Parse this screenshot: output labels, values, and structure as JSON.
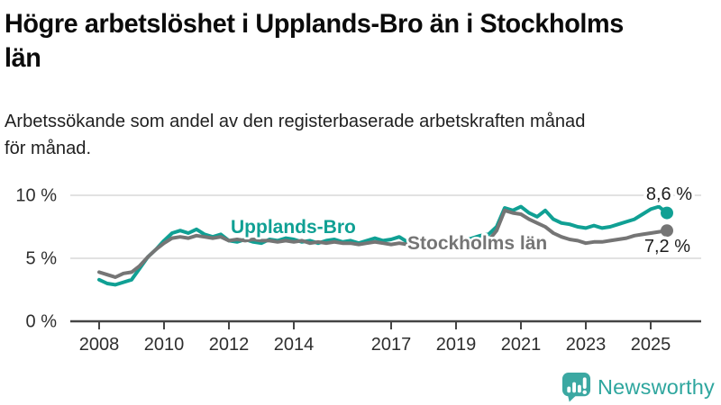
{
  "header": {
    "title_lines": [
      "Högre arbetslöshet i Upplands-Bro än i Stockholms",
      "län"
    ],
    "subtitle_lines": [
      "Arbetssökande som andel av den registerbaserade arbetskraften månad",
      "för månad."
    ]
  },
  "chart_data": {
    "type": "line",
    "title": "Högre arbetslöshet i Upplands-Bro än i Stockholms län",
    "subtitle": "Arbetssökande som andel av den registerbaserade arbetskraften månad för månad.",
    "ylabel": "",
    "xlabel": "",
    "ylim": [
      0,
      10.8
    ],
    "xlim": [
      2008,
      2026.3
    ],
    "grid": "horizontal",
    "legend_position": "inline-labels",
    "x_ticks": [
      2008,
      2010,
      2012,
      2014,
      2017,
      2019,
      2021,
      2023,
      2025
    ],
    "y_ticks": [
      {
        "value": 0,
        "label": "0 %"
      },
      {
        "value": 5,
        "label": "5 %"
      },
      {
        "value": 10,
        "label": "10 %"
      }
    ],
    "x": [
      2008.0,
      2008.25,
      2008.5,
      2008.75,
      2009.0,
      2009.25,
      2009.5,
      2009.75,
      2010.0,
      2010.25,
      2010.5,
      2010.75,
      2011.0,
      2011.25,
      2011.5,
      2011.75,
      2012.0,
      2012.25,
      2012.5,
      2012.75,
      2013.0,
      2013.25,
      2013.5,
      2013.75,
      2014.0,
      2014.25,
      2014.5,
      2014.75,
      2015.0,
      2015.25,
      2015.5,
      2015.75,
      2016.0,
      2016.25,
      2016.5,
      2016.75,
      2017.0,
      2017.25,
      2017.5,
      2017.75,
      2018.0,
      2018.25,
      2018.5,
      2018.75,
      2019.0,
      2019.25,
      2019.5,
      2019.75,
      2020.0,
      2020.25,
      2020.5,
      2020.75,
      2021.0,
      2021.25,
      2021.5,
      2021.75,
      2022.0,
      2022.25,
      2022.5,
      2022.75,
      2023.0,
      2023.25,
      2023.5,
      2023.75,
      2024.0,
      2024.25,
      2024.5,
      2024.75,
      2025.0,
      2025.25,
      2025.5
    ],
    "series": [
      {
        "name": "Upplands-Bro",
        "color": "#10a094",
        "end_label": "8,6 %",
        "end_value": 8.6,
        "values": [
          3.3,
          3.0,
          2.9,
          3.1,
          3.3,
          4.2,
          5.1,
          5.7,
          6.4,
          7.0,
          7.2,
          7.0,
          7.3,
          6.9,
          6.7,
          6.9,
          6.4,
          6.3,
          6.5,
          6.3,
          6.2,
          6.5,
          6.4,
          6.6,
          6.5,
          6.3,
          6.4,
          6.2,
          6.4,
          6.5,
          6.3,
          6.4,
          6.2,
          6.4,
          6.6,
          6.4,
          6.5,
          6.7,
          6.3,
          6.2,
          6.3,
          6.1,
          6.2,
          6.3,
          6.2,
          6.4,
          6.6,
          6.8,
          6.9,
          7.5,
          9.0,
          8.8,
          9.1,
          8.6,
          8.3,
          8.8,
          8.1,
          7.8,
          7.7,
          7.5,
          7.4,
          7.6,
          7.4,
          7.5,
          7.7,
          7.9,
          8.1,
          8.5,
          8.9,
          9.1,
          8.6
        ]
      },
      {
        "name": "Stockholms län",
        "color": "#757575",
        "end_label": "7,2 %",
        "end_value": 7.2,
        "values": [
          3.9,
          3.7,
          3.5,
          3.8,
          3.9,
          4.4,
          5.1,
          5.7,
          6.2,
          6.6,
          6.7,
          6.6,
          6.8,
          6.7,
          6.6,
          6.7,
          6.4,
          6.5,
          6.4,
          6.5,
          6.4,
          6.4,
          6.3,
          6.4,
          6.3,
          6.4,
          6.2,
          6.3,
          6.2,
          6.3,
          6.2,
          6.2,
          6.1,
          6.2,
          6.3,
          6.2,
          6.1,
          6.2,
          6.1,
          6.0,
          6.1,
          6.0,
          6.0,
          6.1,
          6.0,
          6.1,
          6.2,
          6.3,
          6.4,
          7.2,
          8.8,
          8.6,
          8.5,
          8.1,
          7.8,
          7.5,
          7.0,
          6.7,
          6.5,
          6.4,
          6.2,
          6.3,
          6.3,
          6.4,
          6.5,
          6.6,
          6.8,
          6.9,
          7.0,
          7.1,
          7.2
        ]
      }
    ]
  },
  "colors": {
    "upplands_bro": "#10a094",
    "stockholms_lan": "#757575",
    "grid": "#d9d9d9",
    "axis": "#454545",
    "brand_teal": "#3ba8a2"
  },
  "footer": {
    "brand": "Newsworthy",
    "brand_color": "#2ea69e",
    "icon": "bar-chart-speech-bubble"
  }
}
